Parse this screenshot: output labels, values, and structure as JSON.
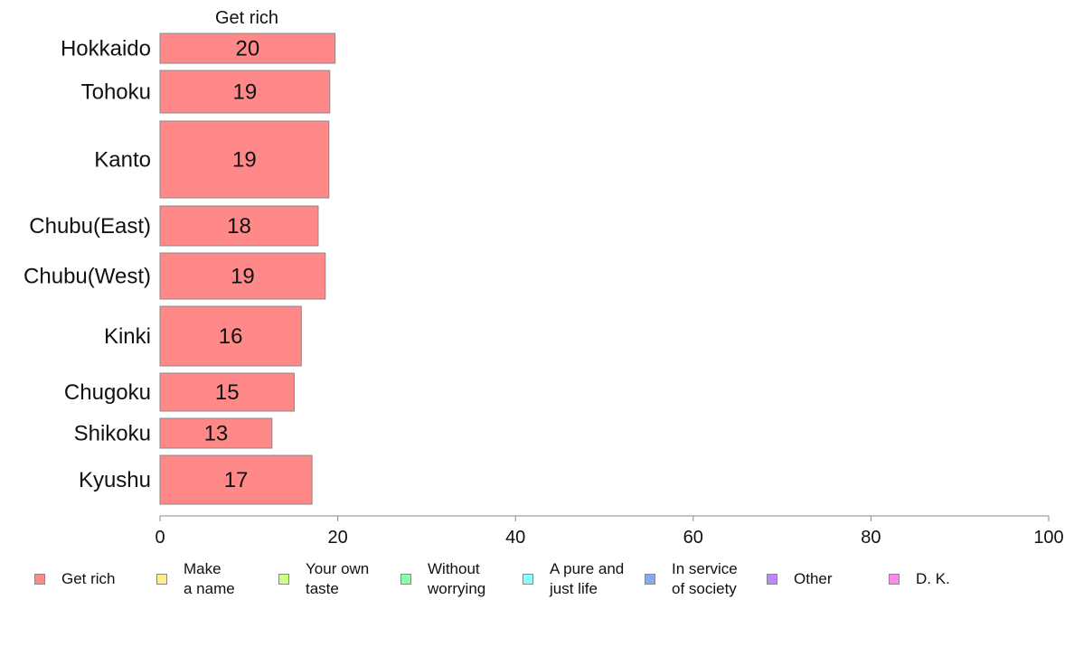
{
  "chart_data": {
    "type": "bar",
    "orientation": "horizontal",
    "series_title": "Get rich",
    "categories": [
      "Hokkaido",
      "Tohoku",
      "Kanto",
      "Chubu(East)",
      "Chubu(West)",
      "Kinki",
      "Chugoku",
      "Shikoku",
      "Kyushu"
    ],
    "series": [
      {
        "name": "Get rich",
        "values": [
          19.7,
          19.1,
          19.0,
          17.8,
          18.6,
          15.9,
          15.1,
          12.6,
          17.1
        ],
        "labels": [
          "20",
          "19",
          "19",
          "18",
          "19",
          "16",
          "15",
          "13",
          "17"
        ]
      }
    ],
    "xlim": [
      0,
      100
    ],
    "xticks": [
      "0",
      "20",
      "40",
      "60",
      "80",
      "100"
    ],
    "grid": false,
    "legend_position": "bottom",
    "legend": [
      {
        "label": "Get rich",
        "color": "#ff8888"
      },
      {
        "label": "Make\na name",
        "color": "#ffee88"
      },
      {
        "label": "Your own\ntaste",
        "color": "#ccff88"
      },
      {
        "label": "Without\nworrying",
        "color": "#88ffaa"
      },
      {
        "label": "A pure and\njust life",
        "color": "#88ffff"
      },
      {
        "label": "In service\nof society",
        "color": "#88aaee"
      },
      {
        "label": "Other",
        "color": "#bb88ff"
      },
      {
        "label": "D. K.",
        "color": "#ff88ee"
      }
    ]
  }
}
